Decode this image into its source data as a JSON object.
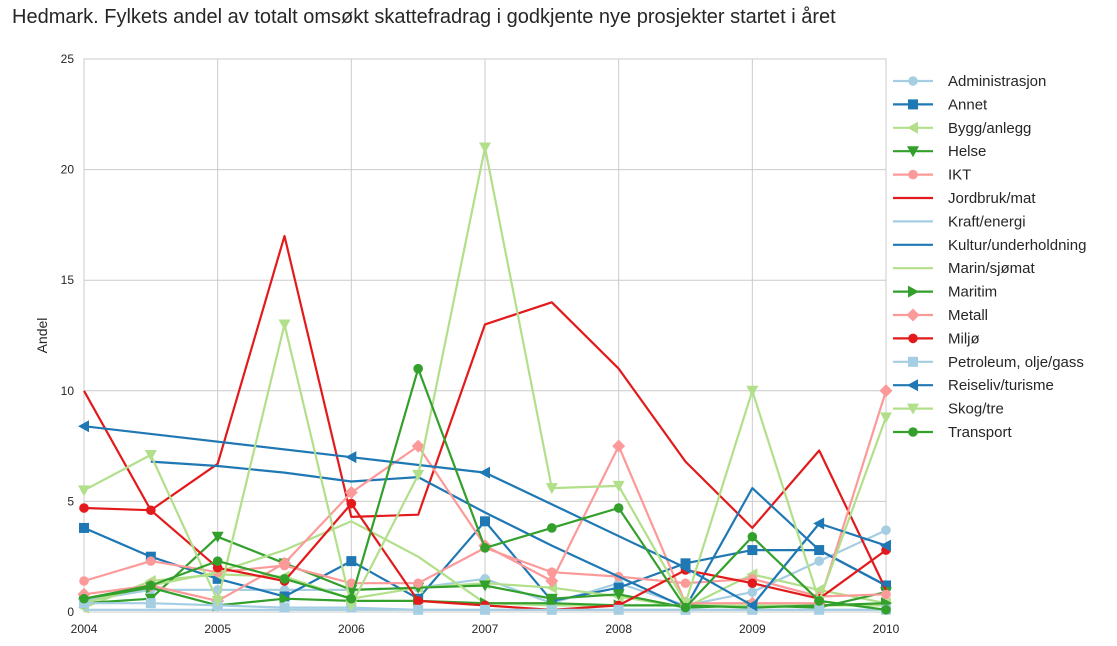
{
  "chart_data": {
    "type": "line",
    "title": "Hedmark. Fylkets andel av totalt omsøkt skattefradrag i godkjente nye prosjekter startet i året",
    "xlabel": "",
    "ylabel": "Andel",
    "xlim": [
      2004,
      2010
    ],
    "ylim": [
      0,
      25
    ],
    "x_ticks": [
      "2004",
      "2005",
      "2006",
      "2007",
      "2008",
      "2009",
      "2010"
    ],
    "y_ticks": [
      "0",
      "5",
      "10",
      "15",
      "20",
      "25"
    ],
    "grid": true,
    "legend": "right",
    "series": [
      {
        "name": "Administrasjon",
        "color": "#a6cee3",
        "marker": "circle",
        "x": [
          2004,
          2004.5,
          2005,
          2005.5,
          2006,
          2006.5,
          2007,
          2007.5,
          2008,
          2008.5,
          2009,
          2009.5,
          2010
        ],
        "y": [
          0.5,
          1.0,
          1.0,
          1.0,
          1.0,
          1.1,
          1.5,
          0.4,
          1.3,
          0.3,
          0.9,
          2.3,
          3.7
        ]
      },
      {
        "name": "Annet",
        "color": "#1f78b4",
        "marker": "square",
        "x": [
          2004,
          2004.5,
          2005,
          2005.5,
          2006,
          2006.5,
          2007,
          2007.5,
          2008,
          2008.5,
          2009,
          2009.5,
          2010
        ],
        "y": [
          3.8,
          2.5,
          1.5,
          0.7,
          2.3,
          0.6,
          4.1,
          0.5,
          1.1,
          2.2,
          2.8,
          2.8,
          1.2
        ]
      },
      {
        "name": "Bygg/anlegg",
        "color": "#b2df8a",
        "marker": "triangle-left",
        "x": [
          2004,
          2004.5,
          2005,
          2005.5,
          2006,
          2006.5,
          2007,
          2007.5,
          2008,
          2008.5,
          2009,
          2009.5,
          2010
        ],
        "y": [
          0.2,
          1.4,
          1.7,
          1.6,
          0.6,
          1.1,
          1.3,
          1.1,
          0.7,
          0.2,
          1.7,
          1.0,
          0.4
        ]
      },
      {
        "name": "Helse",
        "color": "#33a02c",
        "marker": "triangle-down",
        "x": [
          2004,
          2004.5,
          2005,
          2005.5,
          2006,
          2006.5,
          2007,
          2007.5,
          2008,
          2008.5,
          2009,
          2009.5,
          2010
        ],
        "y": [
          0.4,
          0.6,
          3.4,
          2.2,
          1.0,
          1.1,
          1.2,
          0.6,
          0.8,
          0.2,
          0.3,
          0.2,
          0.9
        ]
      },
      {
        "name": "IKT",
        "color": "#fb9a99",
        "marker": "circle",
        "x": [
          2004,
          2004.5,
          2005,
          2005.5,
          2006,
          2006.5,
          2007,
          2007.5,
          2008,
          2008.5,
          2009,
          2009.5,
          2010
        ],
        "y": [
          1.4,
          2.3,
          1.8,
          2.1,
          1.3,
          1.3,
          2.9,
          1.8,
          1.6,
          1.3,
          1.5,
          0.7,
          0.8
        ]
      },
      {
        "name": "Jordbruk/mat",
        "color": "#e31a1c",
        "marker": "none",
        "x": [
          2004,
          2004.5,
          2005,
          2005.5,
          2006,
          2006.5,
          2007,
          2007.5,
          2008,
          2008.5,
          2009,
          2009.5,
          2010
        ],
        "y": [
          10.0,
          4.6,
          6.7,
          17.0,
          4.3,
          4.4,
          13.0,
          14.0,
          11.0,
          6.8,
          3.8,
          7.3,
          1.0
        ]
      },
      {
        "name": "Kraft/energi",
        "color": "#a6cee3",
        "marker": "none",
        "x": [
          2004,
          2004.5,
          2005,
          2005.5,
          2006,
          2006.5,
          2007,
          2007.5,
          2008,
          2008.5,
          2009,
          2009.5,
          2010
        ],
        "y": [
          0.1,
          0.1,
          0.1,
          0.1,
          0.1,
          0.1,
          0.1,
          0.1,
          0.1,
          0.1,
          0.1,
          0.1,
          0.1
        ]
      },
      {
        "name": "Kultur/underholdning",
        "color": "#1f78b4",
        "marker": "none",
        "x": [
          2004.5,
          2005,
          2005.5,
          2006,
          2006.5,
          2007,
          2007.5,
          2008,
          2008.5,
          2009,
          2009.5,
          2010
        ],
        "y": [
          6.8,
          6.6,
          6.3,
          5.9,
          6.1,
          4.5,
          3.0,
          1.6,
          0.2,
          5.6,
          2.8,
          1.2
        ]
      },
      {
        "name": "Marin/sjømat",
        "color": "#b2df8a",
        "marker": "none",
        "x": [
          2004,
          2004.5,
          2005,
          2005.5,
          2006,
          2006.5,
          2007,
          2007.5,
          2008,
          2008.5,
          2009,
          2009.5,
          2010
        ],
        "y": [
          0.4,
          1.2,
          1.8,
          2.8,
          4.1,
          2.5,
          0.4,
          0.3,
          0.3,
          0.3,
          0.3,
          0.3,
          0.3
        ]
      },
      {
        "name": "Maritim",
        "color": "#33a02c",
        "marker": "triangle-right",
        "x": [
          2004,
          2004.5,
          2005,
          2005.5,
          2006,
          2006.5,
          2007,
          2007.5,
          2008,
          2008.5,
          2009,
          2009.5,
          2010
        ],
        "y": [
          0.6,
          1.1,
          0.3,
          0.6,
          0.5,
          0.5,
          0.4,
          0.4,
          0.3,
          0.3,
          0.2,
          0.3,
          0.4
        ]
      },
      {
        "name": "Metall",
        "color": "#fb9a99",
        "marker": "diamond",
        "x": [
          2004,
          2004.5,
          2005,
          2005.5,
          2006,
          2006.5,
          2007,
          2007.5,
          2008,
          2008.5,
          2009,
          2009.5,
          2010
        ],
        "y": [
          0.8,
          1.2,
          0.5,
          2.2,
          5.4,
          7.5,
          3.0,
          1.4,
          7.5,
          0.4,
          0.4,
          0.4,
          10.0
        ]
      },
      {
        "name": "Miljø",
        "color": "#e31a1c",
        "marker": "circle",
        "x": [
          2004,
          2004.5,
          2005,
          2005.5,
          2006,
          2006.5,
          2007,
          2007.5,
          2008,
          2008.5,
          2009,
          2009.5,
          2010
        ],
        "y": [
          4.7,
          4.6,
          2.0,
          1.4,
          4.9,
          0.5,
          0.3,
          0.1,
          0.3,
          1.9,
          1.3,
          0.6,
          2.8
        ]
      },
      {
        "name": "Petroleum, olje/gass",
        "color": "#a6cee3",
        "marker": "square",
        "x": [
          2004,
          2004.5,
          2005,
          2005.5,
          2006,
          2006.5,
          2007,
          2007.5,
          2008,
          2008.5,
          2009,
          2009.5,
          2010
        ],
        "y": [
          0.4,
          0.4,
          0.3,
          0.2,
          0.2,
          0.1,
          0.1,
          0.1,
          0.1,
          0.1,
          0.1,
          0.1,
          0.1
        ]
      },
      {
        "name": "Reiseliv/turisme",
        "color": "#1f78b4",
        "marker": "triangle-left",
        "x": [
          2004,
          2006,
          2007,
          2008.5,
          2009,
          2009.5,
          2010
        ],
        "y": [
          8.4,
          7.0,
          6.3,
          2.0,
          0.3,
          4.0,
          3.0
        ]
      },
      {
        "name": "Skog/tre",
        "color": "#b2df8a",
        "marker": "triangle-down",
        "x": [
          2004,
          2004.5,
          2005,
          2005.5,
          2006,
          2006.5,
          2007,
          2007.5,
          2008,
          2008.5,
          2009,
          2009.5,
          2010
        ],
        "y": [
          5.5,
          7.1,
          0.5,
          13.0,
          0.3,
          6.2,
          21.0,
          5.6,
          5.7,
          0.4,
          10.0,
          0.5,
          8.8
        ]
      },
      {
        "name": "Transport",
        "color": "#33a02c",
        "marker": "circle",
        "x": [
          2004,
          2004.5,
          2005,
          2005.5,
          2006,
          2006.5,
          2007,
          2007.5,
          2008,
          2008.5,
          2009,
          2009.5,
          2010
        ],
        "y": [
          0.6,
          1.2,
          2.3,
          1.5,
          0.6,
          11.0,
          2.9,
          3.8,
          4.7,
          0.2,
          3.4,
          0.5,
          0.1
        ]
      }
    ]
  }
}
